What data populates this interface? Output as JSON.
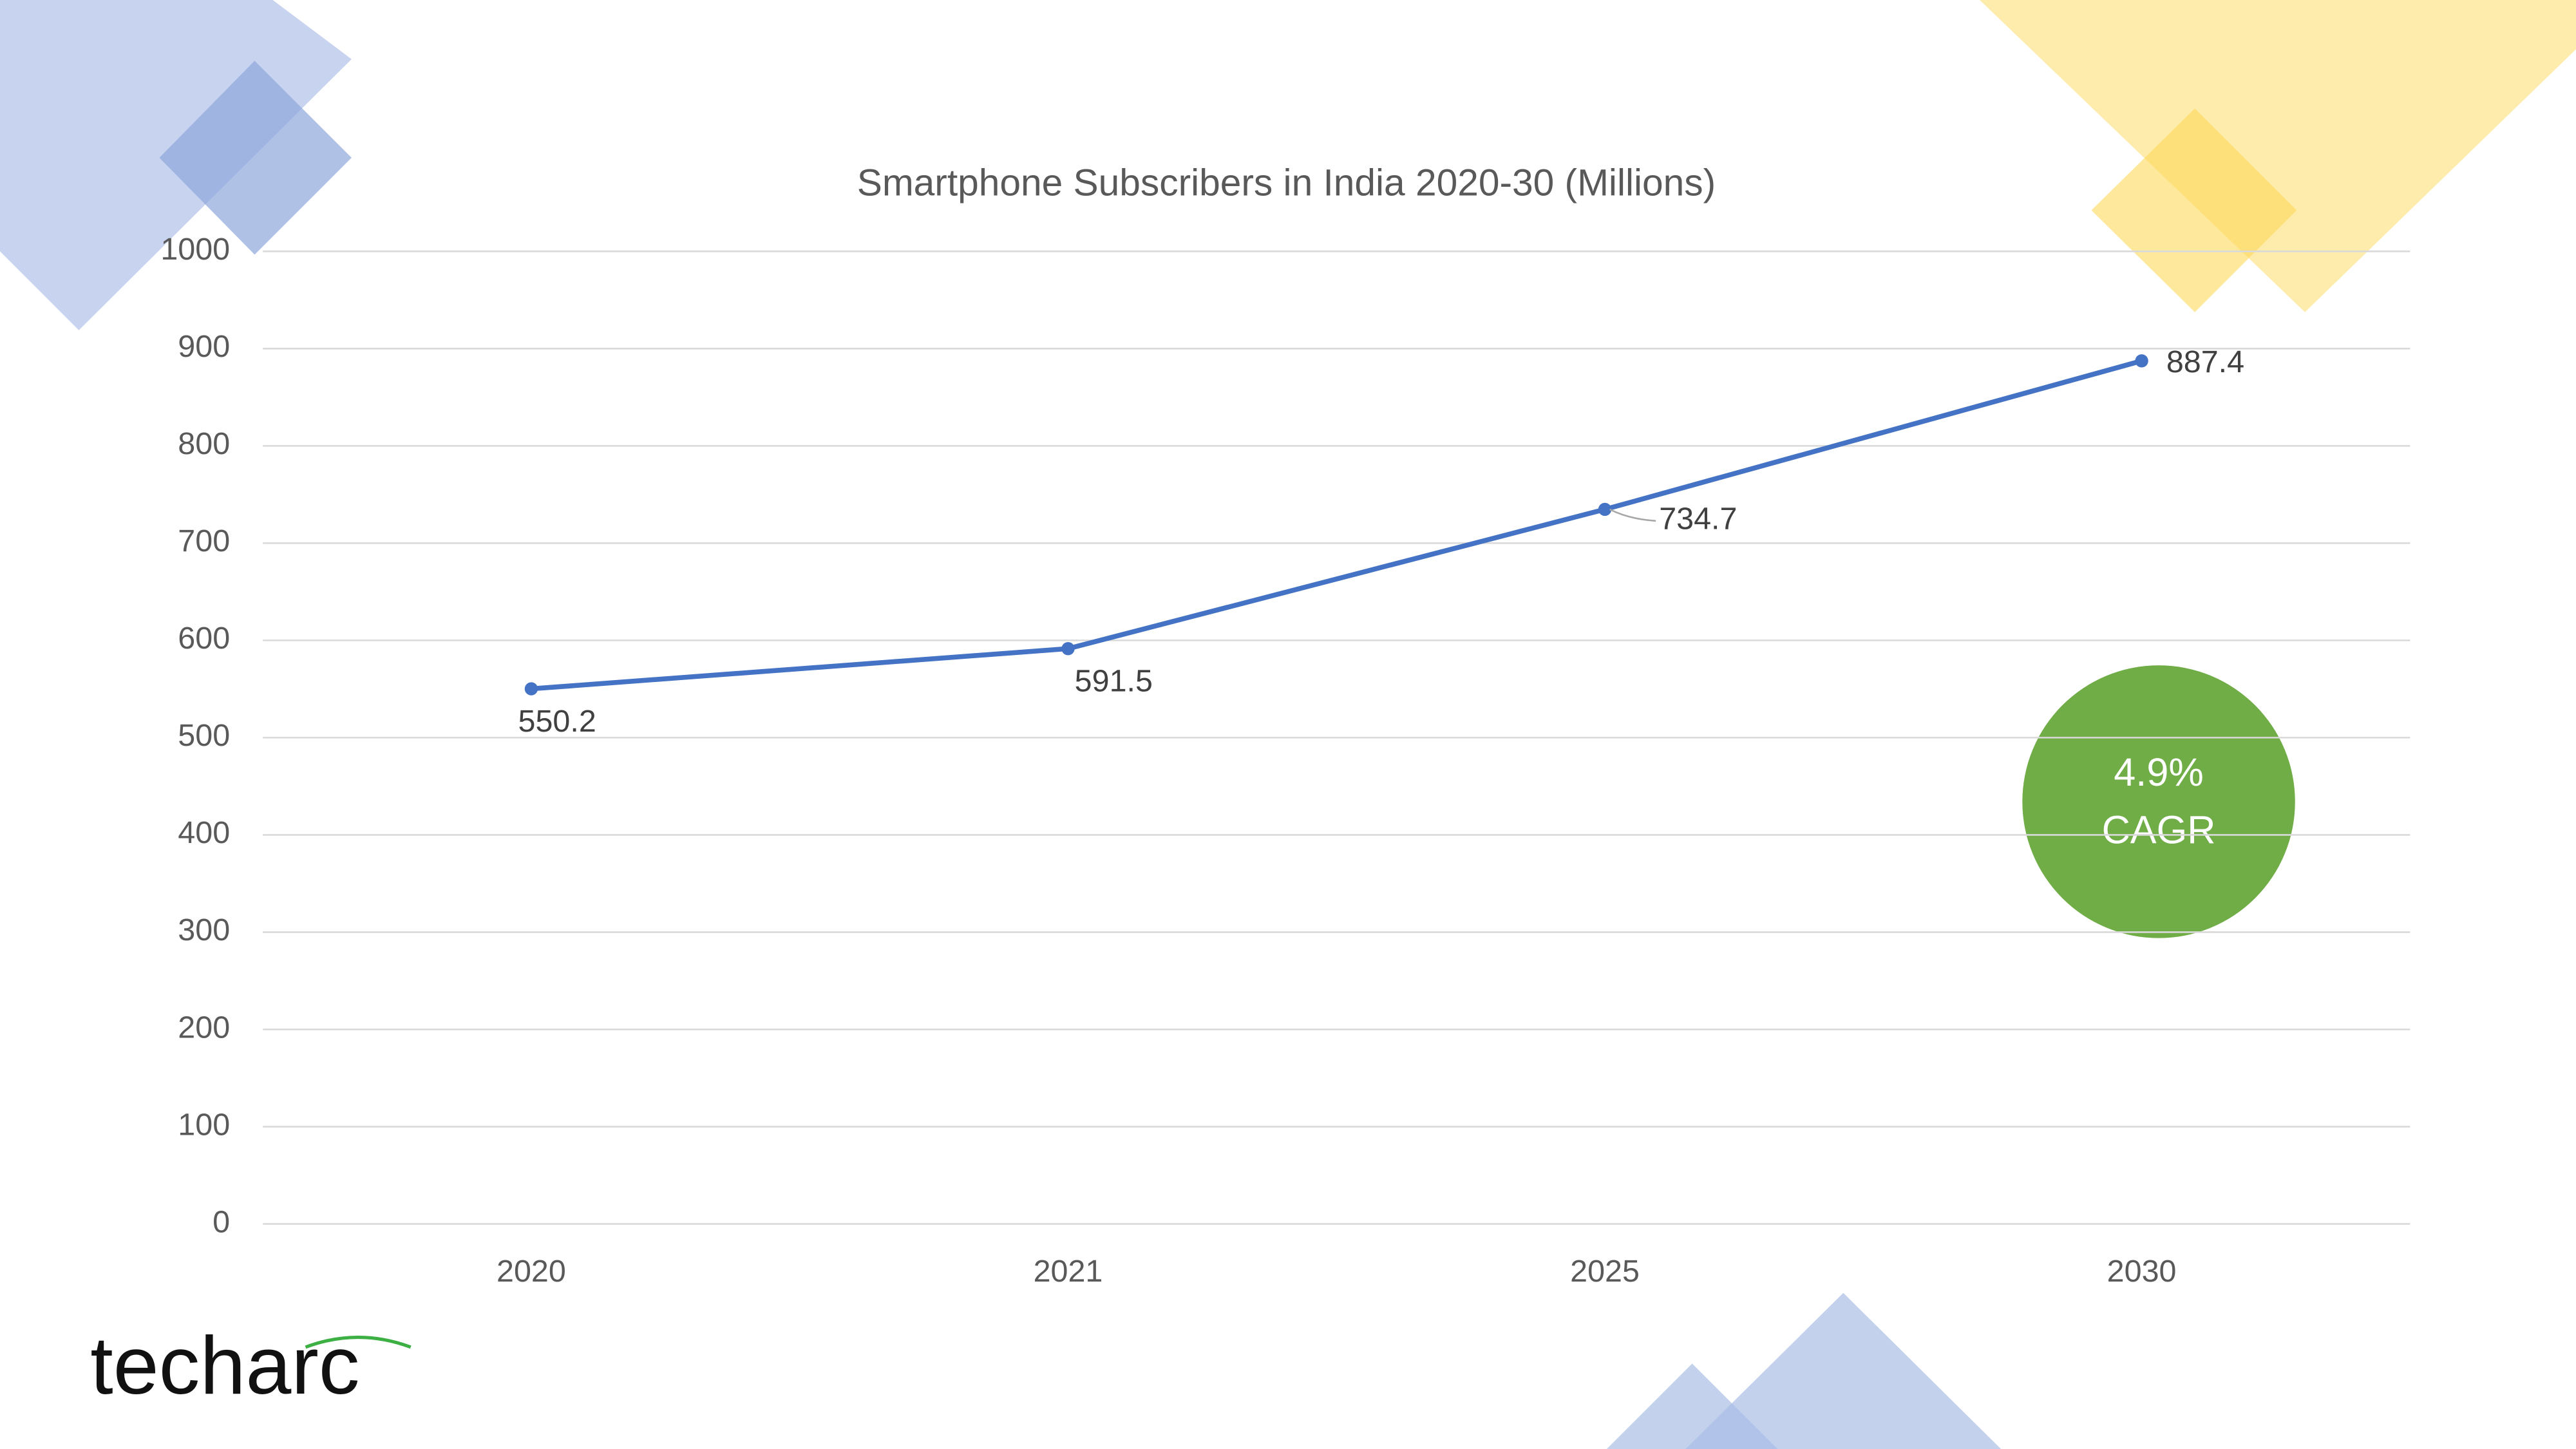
{
  "chart_data": {
    "type": "line",
    "title": "Smartphone Subscribers in India 2020-30 (Millions)",
    "categories": [
      "2020",
      "2021",
      "2025",
      "2030"
    ],
    "values": [
      550.2,
      591.5,
      734.7,
      887.4
    ],
    "color": "#4472c4",
    "ylim": [
      0,
      1000
    ],
    "yticks": [
      0,
      100,
      200,
      300,
      400,
      500,
      600,
      700,
      800,
      900,
      1000
    ],
    "grid": true,
    "annotation": [
      "4.9%",
      "CAGR"
    ]
  },
  "logo": "techarc"
}
